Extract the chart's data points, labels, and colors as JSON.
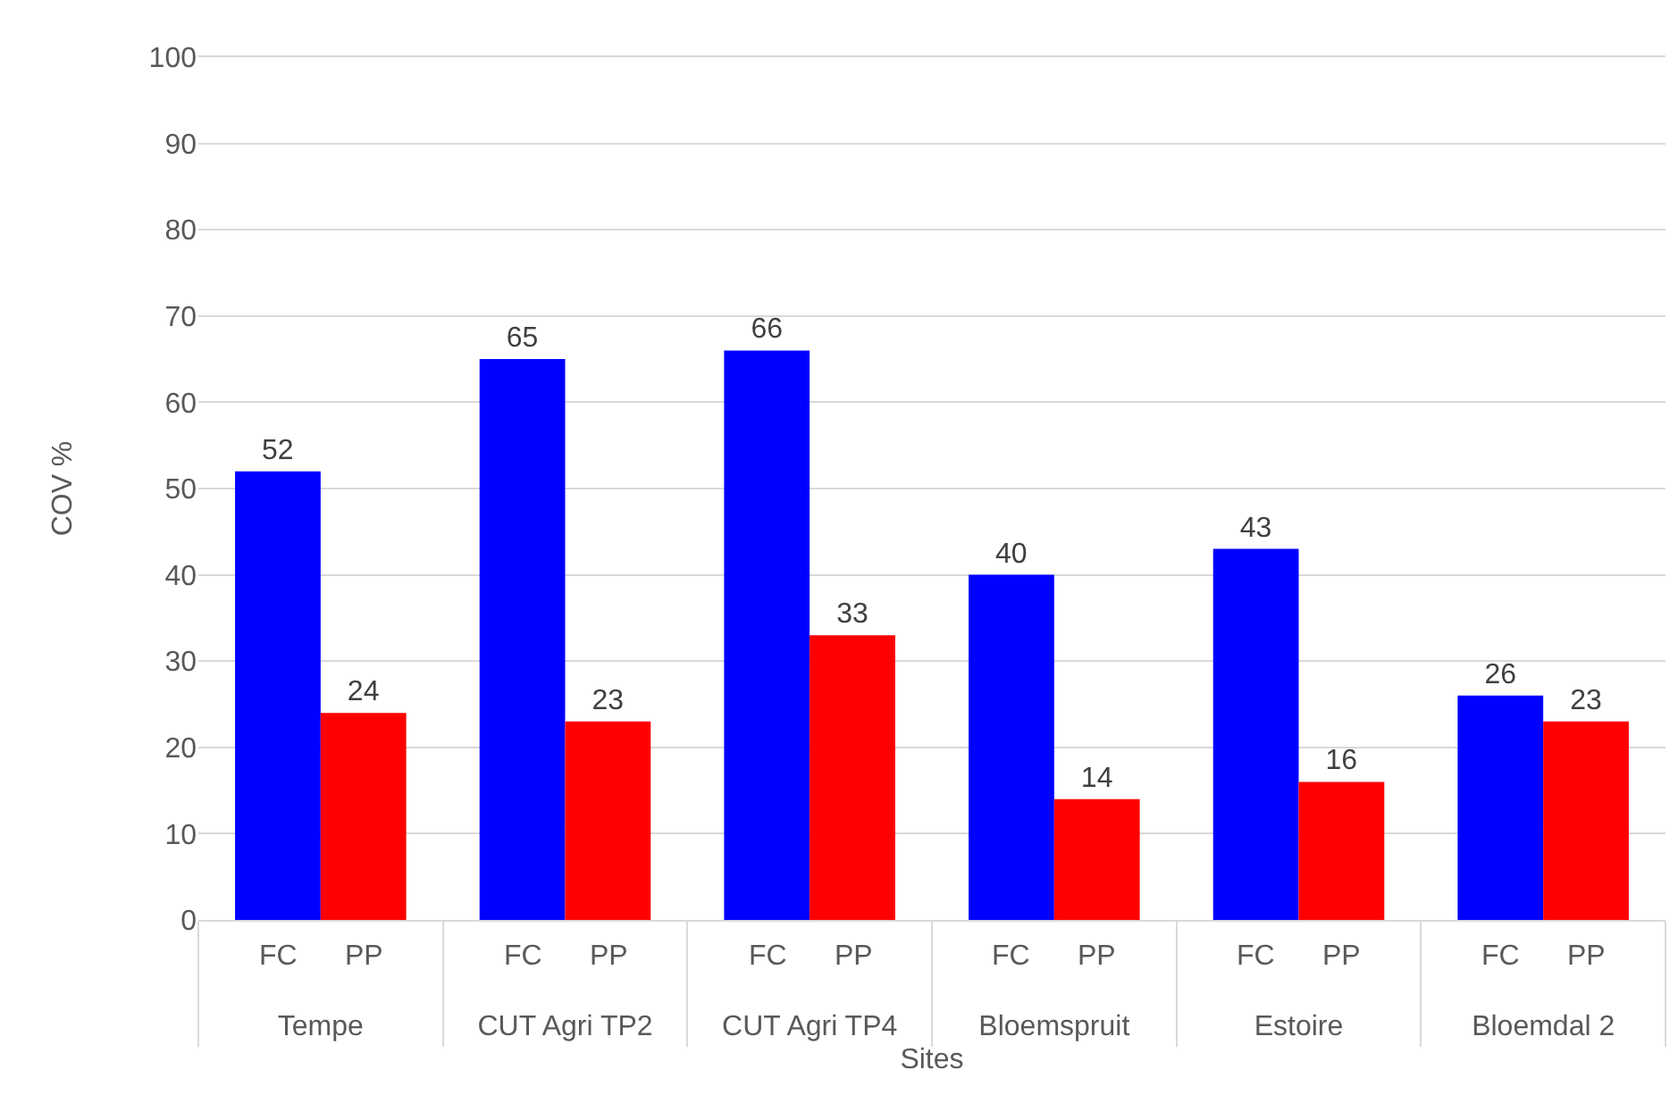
{
  "chart_data": {
    "type": "bar",
    "xlabel": "Sites",
    "ylabel": "COV %",
    "categories": [
      "Tempe",
      "CUT Agri TP2",
      "CUT Agri TP4",
      "Bloemspruit",
      "Estoire",
      "Bloemdal 2"
    ],
    "series": [
      {
        "name": "FC",
        "color": "#0000ff",
        "values": [
          52,
          65,
          66,
          40,
          43,
          26
        ]
      },
      {
        "name": "PP",
        "color": "#ff0000",
        "values": [
          24,
          23,
          33,
          14,
          16,
          23
        ]
      }
    ],
    "ylim": [
      0,
      100
    ],
    "yticks": [
      0,
      10,
      20,
      30,
      40,
      50,
      60,
      70,
      80,
      90,
      100
    ],
    "grid": "y",
    "data_labels": true
  }
}
